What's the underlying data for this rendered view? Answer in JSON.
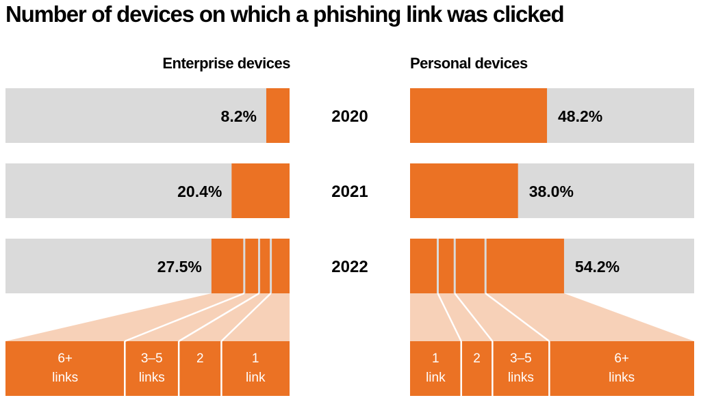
{
  "chart_data": {
    "type": "bar",
    "title": "Number of devices on which a phishing link was clicked",
    "categories": [
      "2020",
      "2021",
      "2022"
    ],
    "series": [
      {
        "name": "Enterprise devices",
        "values": [
          8.2,
          20.4,
          27.5
        ],
        "labels": [
          "8.2%",
          "20.4%",
          "27.5%"
        ],
        "direction": "right-to-left"
      },
      {
        "name": "Personal devices",
        "values": [
          48.2,
          38.0,
          54.2
        ],
        "labels": [
          "48.2%",
          "38.0%",
          "54.2%"
        ],
        "direction": "left-to-right"
      }
    ],
    "breakdown_2022": {
      "enterprise": [
        {
          "label_line1": "1",
          "label_line2": "link",
          "share": 0.24
        },
        {
          "label_line1": "2",
          "label_line2": "",
          "share": 0.15
        },
        {
          "label_line1": "3–5",
          "label_line2": "links",
          "share": 0.19
        },
        {
          "label_line1": "6+",
          "label_line2": "links",
          "share": 0.42
        }
      ],
      "personal": [
        {
          "label_line1": "1",
          "label_line2": "link",
          "share": 0.18
        },
        {
          "label_line1": "2",
          "label_line2": "",
          "share": 0.11
        },
        {
          "label_line1": "3–5",
          "label_line2": "links",
          "share": 0.2
        },
        {
          "label_line1": "6+",
          "label_line2": "links",
          "share": 0.51
        }
      ]
    },
    "ylim": [
      0,
      100
    ],
    "colors": {
      "bar": "#eb7224",
      "track": "#dadada",
      "fan": "#f7d1b8"
    }
  }
}
